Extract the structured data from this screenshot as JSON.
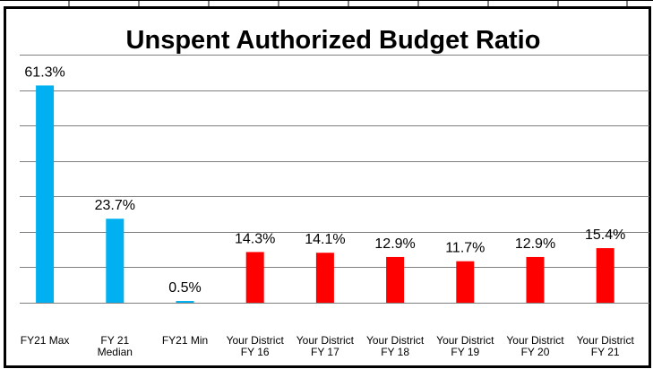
{
  "chart_data": {
    "type": "bar",
    "title": "Unspent Authorized Budget Ratio",
    "categories": [
      "FY21 Max",
      "FY 21\nMedian",
      "FY21 Min",
      "Your District\nFY 16",
      "Your District\nFY 17",
      "Your District\nFY 18",
      "Your District\nFY 19",
      "Your District\nFY 20",
      "Your District\nFY 21"
    ],
    "values": [
      61.3,
      23.7,
      0.5,
      14.3,
      14.1,
      12.9,
      11.7,
      12.9,
      15.4
    ],
    "value_labels": [
      "61.3%",
      "23.7%",
      "0.5%",
      "14.3%",
      "14.1%",
      "12.9%",
      "11.7%",
      "12.9%",
      "15.4%"
    ],
    "colors": [
      "#00b0f0",
      "#00b0f0",
      "#00b0f0",
      "#ff0000",
      "#ff0000",
      "#ff0000",
      "#ff0000",
      "#ff0000",
      "#ff0000"
    ],
    "ylim": [
      0,
      70
    ],
    "yticks": [
      0,
      10,
      20,
      30,
      40,
      50,
      60,
      70
    ],
    "grid": true
  }
}
